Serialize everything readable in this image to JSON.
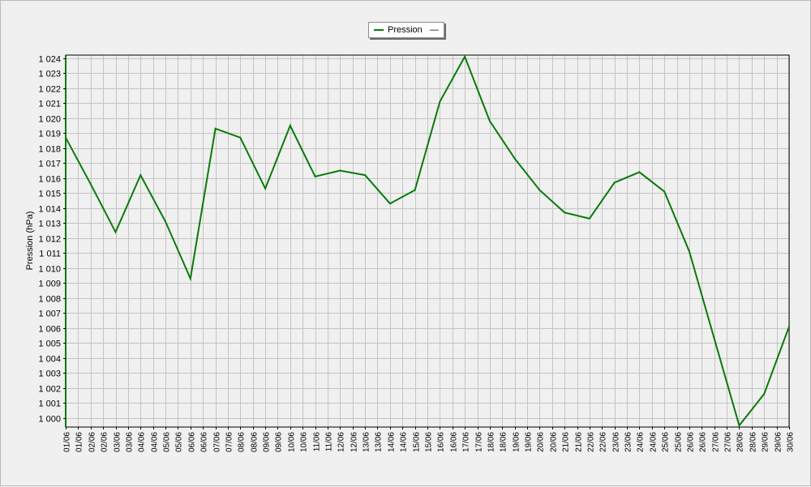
{
  "chart_data": {
    "type": "line",
    "title": "",
    "xlabel": "",
    "ylabel": "Pression (hPa)",
    "ylim": [
      999.4,
      1024.2
    ],
    "grid": true,
    "legend_position": "top-center",
    "colors": {
      "series": "#0a7a0a",
      "grid": "#c4c4c4",
      "plot_bg": "#f0f0f0"
    },
    "y_ticks": [
      {
        "value": 1000,
        "label": "1 000"
      },
      {
        "value": 1001,
        "label": "1 001"
      },
      {
        "value": 1002,
        "label": "1 002"
      },
      {
        "value": 1003,
        "label": "1 003"
      },
      {
        "value": 1004,
        "label": "1 004"
      },
      {
        "value": 1005,
        "label": "1 005"
      },
      {
        "value": 1006,
        "label": "1 006"
      },
      {
        "value": 1007,
        "label": "1 007"
      },
      {
        "value": 1008,
        "label": "1 008"
      },
      {
        "value": 1009,
        "label": "1 009"
      },
      {
        "value": 1010,
        "label": "1 010"
      },
      {
        "value": 1011,
        "label": "1 011"
      },
      {
        "value": 1012,
        "label": "1 012"
      },
      {
        "value": 1013,
        "label": "1 013"
      },
      {
        "value": 1014,
        "label": "1 014"
      },
      {
        "value": 1015,
        "label": "1 015"
      },
      {
        "value": 1016,
        "label": "1 016"
      },
      {
        "value": 1017,
        "label": "1 017"
      },
      {
        "value": 1018,
        "label": "1 018"
      },
      {
        "value": 1019,
        "label": "1 019"
      },
      {
        "value": 1020,
        "label": "1 020"
      },
      {
        "value": 1021,
        "label": "1 021"
      },
      {
        "value": 1022,
        "label": "1 022"
      },
      {
        "value": 1023,
        "label": "1 023"
      },
      {
        "value": 1024,
        "label": "1 024"
      }
    ],
    "x_tick_labels": [
      "01/06",
      "01/06",
      "02/06",
      "02/06",
      "03/06",
      "03/06",
      "04/06",
      "04/06",
      "05/06",
      "05/06",
      "06/06",
      "06/06",
      "07/06",
      "07/06",
      "08/06",
      "08/06",
      "09/06",
      "09/06",
      "10/06",
      "10/06",
      "11/06",
      "11/06",
      "12/06",
      "12/06",
      "13/06",
      "13/06",
      "14/06",
      "14/06",
      "15/06",
      "15/06",
      "16/06",
      "16/06",
      "17/06",
      "17/06",
      "18/06",
      "18/06",
      "19/06",
      "19/06",
      "20/06",
      "20/06",
      "21/06",
      "21/06",
      "22/06",
      "22/06",
      "23/06",
      "23/06",
      "24/06",
      "24/06",
      "25/06",
      "25/06",
      "26/06",
      "26/06",
      "27/06",
      "27/06",
      "28/06",
      "28/06",
      "29/06",
      "29/06",
      "30/06"
    ],
    "series": [
      {
        "name": "Pression",
        "x": [
          "01/06",
          "02/06",
          "03/06",
          "04/06",
          "05/06",
          "06/06",
          "07/06",
          "08/06",
          "09/06",
          "10/06",
          "11/06",
          "12/06",
          "13/06",
          "14/06",
          "15/06",
          "16/06",
          "17/06",
          "18/06",
          "19/06",
          "20/06",
          "21/06",
          "22/06",
          "23/06",
          "24/06",
          "25/06",
          "26/06",
          "27/06",
          "28/06",
          "29/06",
          "30/06"
        ],
        "values": [
          1018.7,
          1015.6,
          1012.4,
          1016.2,
          1013.1,
          1009.3,
          1019.3,
          1018.7,
          1015.3,
          1019.5,
          1016.1,
          1016.5,
          1016.2,
          1014.3,
          1015.2,
          1021.1,
          1024.1,
          1019.8,
          1017.3,
          1015.2,
          1013.7,
          1013.3,
          1015.7,
          1016.4,
          1015.1,
          1011.1,
          1005.3,
          999.5,
          1001.6,
          1006.1
        ]
      }
    ]
  },
  "legend": {
    "label": "Pression",
    "line_style": "—"
  }
}
